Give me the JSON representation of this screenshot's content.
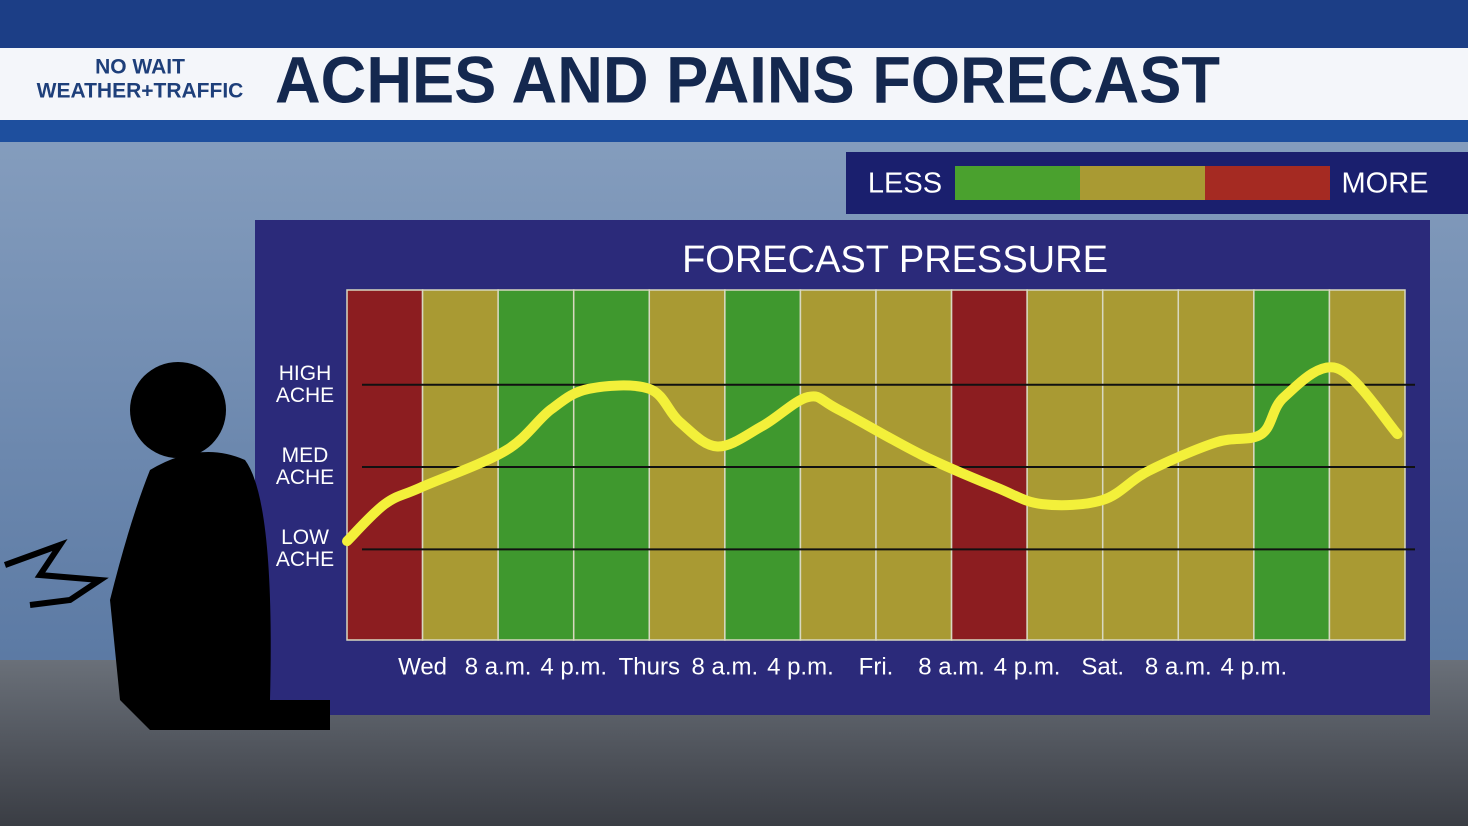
{
  "header": {
    "brand_top": "NO WAIT",
    "brand_bottom": "WEATHER+TRAFFIC",
    "title": "ACHES AND PAINS FORECAST"
  },
  "legend": {
    "low_label": "LESS",
    "high_label": "MORE",
    "colors": [
      "#4aa12e",
      "#a99a33",
      "#a52a22"
    ]
  },
  "chart_data": {
    "type": "line",
    "title": "FORECAST PRESSURE",
    "x": [
      0,
      0.5,
      0.97,
      2.1,
      2.7,
      3.2,
      4.0,
      4.4,
      4.9,
      5.5,
      6.1,
      6.5,
      7.6,
      8.6,
      9.2,
      10.0,
      10.6,
      11.5,
      12.1,
      12.4,
      13.1,
      13.9
    ],
    "values": [
      1.1,
      1.55,
      1.75,
      2.2,
      2.7,
      2.95,
      2.95,
      2.55,
      2.25,
      2.5,
      2.85,
      2.7,
      2.15,
      1.75,
      1.55,
      1.6,
      1.95,
      2.3,
      2.4,
      2.85,
      3.2,
      2.4
    ],
    "color": "#f3f03a",
    "band_colors": [
      "#8c1d20",
      "#a99a33",
      "#3f982e",
      "#3f982e",
      "#a99a33",
      "#3f982e",
      "#a99a33",
      "#a99a33",
      "#8c1d20",
      "#a99a33",
      "#a99a33",
      "#a99a33",
      "#3f982e",
      "#a99a33"
    ],
    "xlim": [
      0,
      14
    ],
    "ylim": [
      -0.1,
      4.15
    ],
    "xticks": [
      {
        "value": 1,
        "label": "Wed"
      },
      {
        "value": 2,
        "label": "8 a.m."
      },
      {
        "value": 3,
        "label": "4 p.m."
      },
      {
        "value": 4,
        "label": "Thurs"
      },
      {
        "value": 5,
        "label": "8 a.m."
      },
      {
        "value": 6,
        "label": "4 p.m."
      },
      {
        "value": 7,
        "label": "Fri."
      },
      {
        "value": 8,
        "label": "8 a.m."
      },
      {
        "value": 9,
        "label": "4 p.m."
      },
      {
        "value": 10,
        "label": "Sat."
      },
      {
        "value": 11,
        "label": "8 a.m."
      },
      {
        "value": 12,
        "label": "4 p.m."
      }
    ],
    "yticks": [
      {
        "value": 1,
        "label": "LOW ACHE"
      },
      {
        "value": 2,
        "label": "MED ACHE"
      },
      {
        "value": 3,
        "label": "HIGH ACHE"
      }
    ],
    "grid": true
  }
}
